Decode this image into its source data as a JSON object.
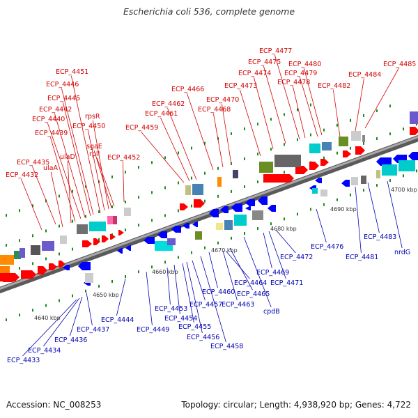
{
  "title": "Escherichia coli 536, complete genome",
  "accession": "Accession: NC_008253",
  "summary": "Topology: circular; Length: 4,938,920 bp; Genes: 4,722",
  "scale_ticks": [
    "4640 kbp",
    "4650 kbp",
    "4660 kbp",
    "4670 kbp",
    "4680 kbp",
    "4690 kbp",
    "4700 kbp"
  ],
  "colors": {
    "forward_label": "#d20000",
    "reverse_label": "#0000b4",
    "forward_gene": "#ff0000",
    "reverse_gene": "#0000ff",
    "axis": "#888888",
    "tick": "#1a8a1a"
  },
  "top_labels": [
    "ECP_4432",
    "ECP_4435",
    "ulaA",
    "ulaD",
    "ECP_4439",
    "ECP_4440",
    "ECP_4442",
    "ECP_4445",
    "ECP_4446",
    "ECP_4451",
    "ECP_4450",
    "rpsR",
    "sgaE",
    "rplI",
    "ECP_4452",
    "ECP_4459",
    "ECP_4461",
    "ECP_4462",
    "ECP_4466",
    "ECP_4468",
    "ECP_4470",
    "ECP_4473",
    "ECP_4474",
    "ECP_4475",
    "ECP_4477",
    "ECP_4478",
    "ECP_4479",
    "ECP_4480",
    "ECP_4482",
    "ECP_4484",
    "ECP_4485"
  ],
  "bottom_labels": [
    "ECP_4433",
    "ECP_4434",
    "ECP_4436",
    "ECP_4437",
    "ECP_4444",
    "ECP_4449",
    "ECP_4453",
    "ECP_4454",
    "ECP_4455",
    "ECP_4456",
    "ECP_4457",
    "ECP_4458",
    "ECP_4460",
    "ECP_4463",
    "ECP_4464",
    "ECP_4465",
    "cpdB",
    "ECP_4469",
    "ECP_4471",
    "ECP_4472",
    "ECP_4476",
    "ECP_4481",
    "ECP_4483",
    "nrdG"
  ]
}
